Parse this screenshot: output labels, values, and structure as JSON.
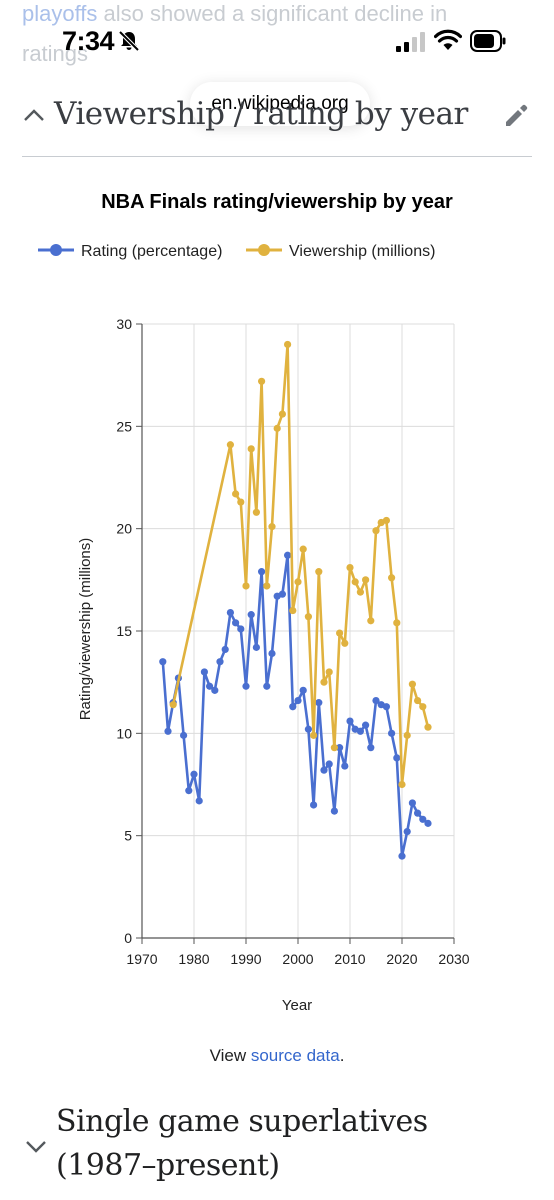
{
  "background_text": {
    "line1_link": "playoffs",
    "line1_rest": " also showed a significant decline in",
    "line2": "ratings"
  },
  "status_bar": {
    "time": "7:34",
    "icons": [
      "bell-slash-icon",
      "signal-icon",
      "wifi-icon",
      "battery-icon"
    ]
  },
  "browser": {
    "url": "en.wikipedia.org"
  },
  "section": {
    "title": "Viewership / rating by year"
  },
  "chart_data": {
    "type": "line",
    "title": "NBA Finals rating/viewership by year",
    "xlabel": "Year",
    "ylabel": "Rating/viewership (millions)",
    "xlim": [
      1970,
      2030
    ],
    "ylim": [
      0,
      30
    ],
    "xticks": [
      1970,
      1980,
      1990,
      2000,
      2010,
      2020,
      2030
    ],
    "yticks": [
      0,
      5,
      10,
      15,
      20,
      25,
      30
    ],
    "grid": true,
    "legend_position": "top",
    "series": [
      {
        "name": "Rating (percentage)",
        "color": "#4a6fd0",
        "points": [
          [
            1974,
            13.5
          ],
          [
            1975,
            10.1
          ],
          [
            1976,
            11.5
          ],
          [
            1977,
            12.7
          ],
          [
            1978,
            9.9
          ],
          [
            1979,
            7.2
          ],
          [
            1980,
            8.0
          ],
          [
            1981,
            6.7
          ],
          [
            1982,
            13.0
          ],
          [
            1983,
            12.3
          ],
          [
            1984,
            12.1
          ],
          [
            1985,
            13.5
          ],
          [
            1986,
            14.1
          ],
          [
            1987,
            15.9
          ],
          [
            1988,
            15.4
          ],
          [
            1989,
            15.1
          ],
          [
            1990,
            12.3
          ],
          [
            1991,
            15.8
          ],
          [
            1992,
            14.2
          ],
          [
            1993,
            17.9
          ],
          [
            1994,
            12.3
          ],
          [
            1995,
            13.9
          ],
          [
            1996,
            16.7
          ],
          [
            1997,
            16.8
          ],
          [
            1998,
            18.7
          ],
          [
            1999,
            11.3
          ],
          [
            2000,
            11.6
          ],
          [
            2001,
            12.1
          ],
          [
            2002,
            10.2
          ],
          [
            2003,
            6.5
          ],
          [
            2004,
            11.5
          ],
          [
            2005,
            8.2
          ],
          [
            2006,
            8.5
          ],
          [
            2007,
            6.2
          ],
          [
            2008,
            9.3
          ],
          [
            2009,
            8.4
          ],
          [
            2010,
            10.6
          ],
          [
            2011,
            10.2
          ],
          [
            2012,
            10.1
          ],
          [
            2013,
            10.4
          ],
          [
            2014,
            9.3
          ],
          [
            2015,
            11.6
          ],
          [
            2016,
            11.4
          ],
          [
            2017,
            11.3
          ],
          [
            2018,
            10.0
          ],
          [
            2019,
            8.8
          ],
          [
            2020,
            4.0
          ],
          [
            2021,
            5.2
          ],
          [
            2022,
            6.6
          ],
          [
            2023,
            6.1
          ],
          [
            2024,
            5.8
          ],
          [
            2025,
            5.6
          ]
        ]
      },
      {
        "name": "Viewership (millions)",
        "color": "#e0b23f",
        "points": [
          [
            1976,
            11.4
          ],
          [
            1987,
            24.1
          ],
          [
            1988,
            21.7
          ],
          [
            1989,
            21.3
          ],
          [
            1990,
            17.2
          ],
          [
            1991,
            23.9
          ],
          [
            1992,
            20.8
          ],
          [
            1993,
            27.2
          ],
          [
            1994,
            17.2
          ],
          [
            1995,
            20.1
          ],
          [
            1996,
            24.9
          ],
          [
            1997,
            25.6
          ],
          [
            1998,
            29.0
          ],
          [
            1999,
            16.0
          ],
          [
            2000,
            17.4
          ],
          [
            2001,
            19.0
          ],
          [
            2002,
            15.7
          ],
          [
            2003,
            9.9
          ],
          [
            2004,
            17.9
          ],
          [
            2005,
            12.5
          ],
          [
            2006,
            13.0
          ],
          [
            2007,
            9.3
          ],
          [
            2008,
            14.9
          ],
          [
            2009,
            14.4
          ],
          [
            2010,
            18.1
          ],
          [
            2011,
            17.4
          ],
          [
            2012,
            16.9
          ],
          [
            2013,
            17.5
          ],
          [
            2014,
            15.5
          ],
          [
            2015,
            19.9
          ],
          [
            2016,
            20.3
          ],
          [
            2017,
            20.4
          ],
          [
            2018,
            17.6
          ],
          [
            2019,
            15.4
          ],
          [
            2020,
            7.5
          ],
          [
            2021,
            9.9
          ],
          [
            2022,
            12.4
          ],
          [
            2023,
            11.6
          ],
          [
            2024,
            11.3
          ],
          [
            2025,
            10.3
          ]
        ]
      }
    ]
  },
  "source_note": {
    "prefix": "View ",
    "link": "source data",
    "suffix": "."
  },
  "next_section": {
    "title": "Single game superlatives (1987–present)"
  }
}
